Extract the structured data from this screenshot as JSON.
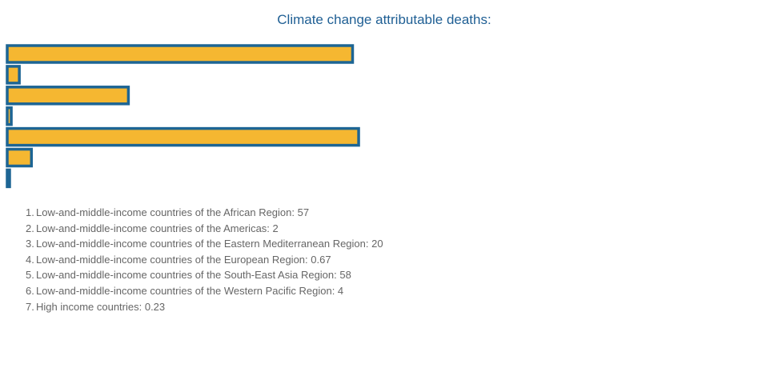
{
  "chart_data": {
    "type": "bar",
    "orientation": "horizontal",
    "title": "Climate change attributable deaths:",
    "colors": {
      "bar_fill": "#f5b731",
      "bar_stroke": "#1d6594",
      "title": "#1f5f94",
      "legend_text": "#666666"
    },
    "categories": [
      "Low-and-middle-income countries of the African Region",
      "Low-and-middle-income countries of the Americas",
      "Low-and-middle-income countries of the Eastern Mediterranean Region",
      "Low-and-middle-income countries of the European Region",
      "Low-and-middle-income countries of the South-East Asia Region",
      "Low-and-middle-income countries of the Western Pacific Region",
      "High income countries"
    ],
    "values": [
      57,
      2,
      20,
      0.67,
      58,
      4,
      0.23
    ],
    "labels": [
      "Low-and-middle-income countries of the African Region: 57",
      "Low-and-middle-income countries of the Americas: 2",
      "Low-and-middle-income countries of the Eastern Mediterranean Region: 20",
      "Low-and-middle-income countries of the European Region: 0.67",
      "Low-and-middle-income countries of the South-East Asia Region: 58",
      "Low-and-middle-income countries of the Western Pacific Region: 4",
      "High income countries: 0.23"
    ],
    "grid": false,
    "legend": "bottom-left"
  }
}
